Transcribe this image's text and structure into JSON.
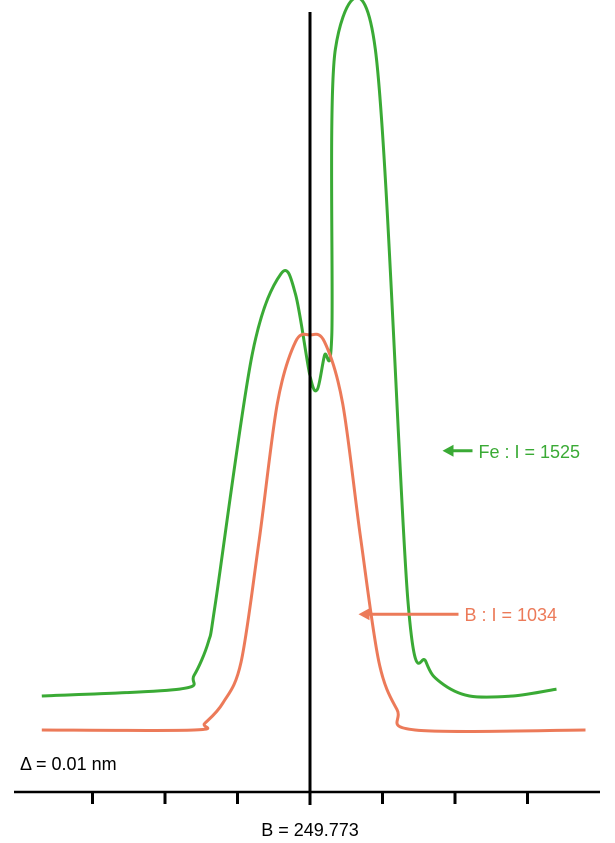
{
  "chart_data": {
    "type": "line",
    "title": "",
    "xlabel": "B = 249.773",
    "ylabel": "",
    "scale_note": "Δ = 0.01 nm",
    "x_units": "steps of 0.01 nm relative to B = 249.773 nm",
    "ylim": [
      0,
      1
    ],
    "xlim": [
      -4.0,
      3.8
    ],
    "x_ticks": [
      -3,
      -2,
      -1,
      0,
      1,
      2,
      3
    ],
    "grid": false,
    "legend": "none",
    "colors": {
      "fe": "#3aaa35",
      "b": "#ec7a59",
      "axis": "#000000"
    },
    "series": [
      {
        "key": "fe",
        "name": "Fe : I = 1525",
        "color": "#3aaa35",
        "x": [
          -3.7,
          -1.8,
          -1.6,
          -1.4,
          -1.3,
          -0.8,
          -0.4,
          -0.2,
          0.0,
          0.1,
          0.2,
          0.3,
          0.35,
          0.9,
          1.35,
          1.6,
          1.8,
          2.2,
          2.8,
          3.4
        ],
        "y": [
          0.05,
          0.06,
          0.08,
          0.13,
          0.19,
          0.55,
          0.67,
          0.64,
          0.52,
          0.5,
          0.55,
          0.58,
          1.0,
          1.0,
          0.19,
          0.1,
          0.07,
          0.05,
          0.05,
          0.06
        ]
      },
      {
        "key": "b",
        "name": "B : I = 1034",
        "color": "#ec7a59",
        "x": [
          -3.7,
          -1.6,
          -1.45,
          -1.2,
          -0.95,
          -0.7,
          -0.45,
          -0.2,
          0.0,
          0.2,
          0.45,
          0.7,
          0.95,
          1.2,
          1.45,
          3.8
        ],
        "y": [
          0.0,
          0.0,
          0.01,
          0.04,
          0.1,
          0.28,
          0.48,
          0.57,
          0.58,
          0.57,
          0.48,
          0.28,
          0.1,
          0.03,
          0.0,
          0.0
        ]
      }
    ],
    "annotations": [
      {
        "text": "Fe : I = 1525",
        "series": "fe",
        "x": 1.8,
        "y": 0.41
      },
      {
        "text": "B : I = 1034",
        "series": "b",
        "x": 0.6,
        "y": 0.17
      }
    ]
  }
}
